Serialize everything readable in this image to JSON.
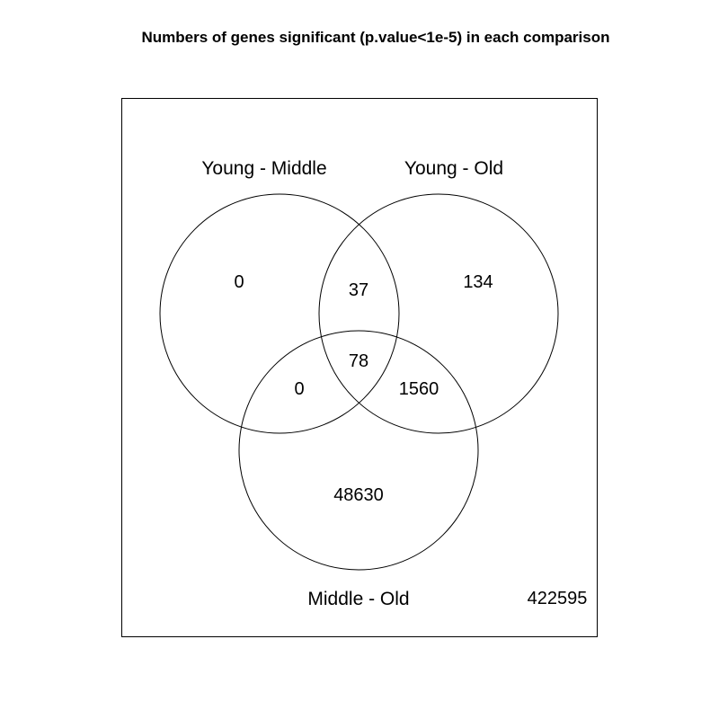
{
  "title": "Numbers of genes significant (p.value<1e-5) in each comparison",
  "sets": [
    {
      "name": "Young - Middle"
    },
    {
      "name": "Young - Old"
    },
    {
      "name": "Middle - Old"
    }
  ],
  "regions": {
    "young_middle_only": "0",
    "young_old_only": "134",
    "middle_old_only": "48630",
    "young_middle_and_young_old": "37",
    "young_middle_and_middle_old": "0",
    "young_old_and_middle_old": "1560",
    "all_three": "78",
    "none": "422595"
  },
  "colors": {
    "background": "#ffffff",
    "stroke": "#000000",
    "text": "#000000"
  }
}
